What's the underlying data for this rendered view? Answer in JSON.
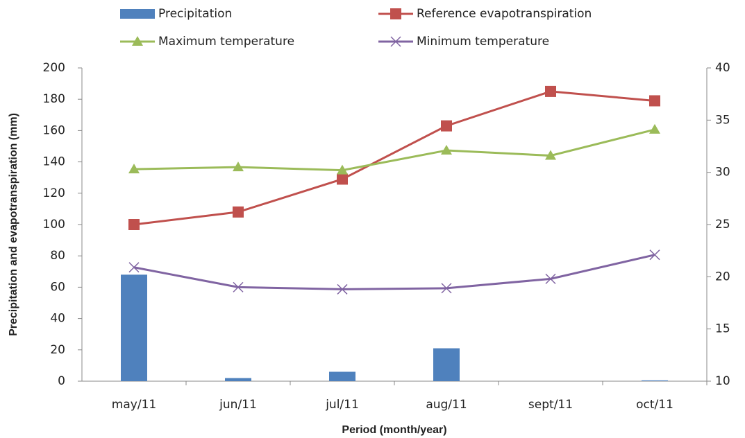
{
  "chart_data": {
    "type": "bar-line",
    "x_label": "Period (month/year)",
    "y_label": "Precipitation and evapotranspiration (mm)",
    "categories": [
      "may/11",
      "jun/11",
      "jul/11",
      "aug/11",
      "sept/11",
      "oct/11"
    ],
    "ylim": [
      0,
      200
    ],
    "yticks": [
      0,
      20,
      40,
      60,
      80,
      100,
      120,
      140,
      160,
      180,
      200
    ],
    "y2lim": [
      10,
      40
    ],
    "y2ticks": [
      10,
      15,
      20,
      25,
      30,
      35,
      40
    ],
    "series": [
      {
        "name": "Precipitation",
        "kind": "bar",
        "color": "#4f81bd",
        "values": [
          68,
          2,
          6,
          21,
          0,
          0.5
        ]
      },
      {
        "name": "Reference evapotranspiration",
        "kind": "line",
        "marker": "square",
        "color": "#c0504d",
        "values": [
          100,
          108,
          129,
          163,
          185,
          179
        ]
      },
      {
        "name": "Maximum temperature",
        "kind": "line",
        "marker": "triangle",
        "axis": "y2",
        "color": "#9bbb59",
        "values": [
          30.3,
          30.5,
          30.2,
          32.1,
          31.6,
          34.1
        ]
      },
      {
        "name": "Minimum temperature",
        "kind": "line",
        "marker": "x",
        "axis": "y2",
        "color": "#8064a2",
        "values": [
          20.9,
          19.0,
          18.8,
          18.9,
          19.8,
          22.1
        ]
      }
    ]
  }
}
